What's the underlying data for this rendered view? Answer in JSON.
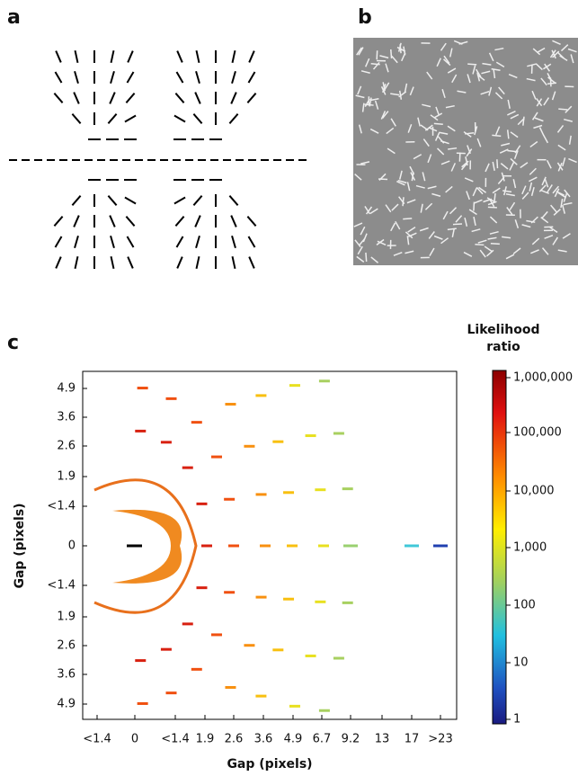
{
  "panel_labels": [
    "a",
    "b",
    "c"
  ],
  "panel_c": {
    "x_label": "Gap (pixels)",
    "y_label": "Gap (pixels)",
    "x_ticks": [
      "<1.4",
      "0",
      "<1.4",
      "1.9",
      "2.6",
      "3.6",
      "4.9",
      "6.7",
      "9.2",
      "13",
      "17",
      ">23"
    ],
    "y_ticks": [
      "4.9",
      "3.6",
      "2.6",
      "1.9",
      "<1.4",
      "0",
      "<1.4",
      "1.9",
      "2.6",
      "3.6",
      "4.9"
    ],
    "colorbar": {
      "title_lines": [
        "Likelihood",
        "ratio"
      ],
      "ticks": [
        "1,000,000",
        "100,000",
        "10,000",
        "1,000",
        "100",
        "10",
        "1"
      ]
    }
  }
}
